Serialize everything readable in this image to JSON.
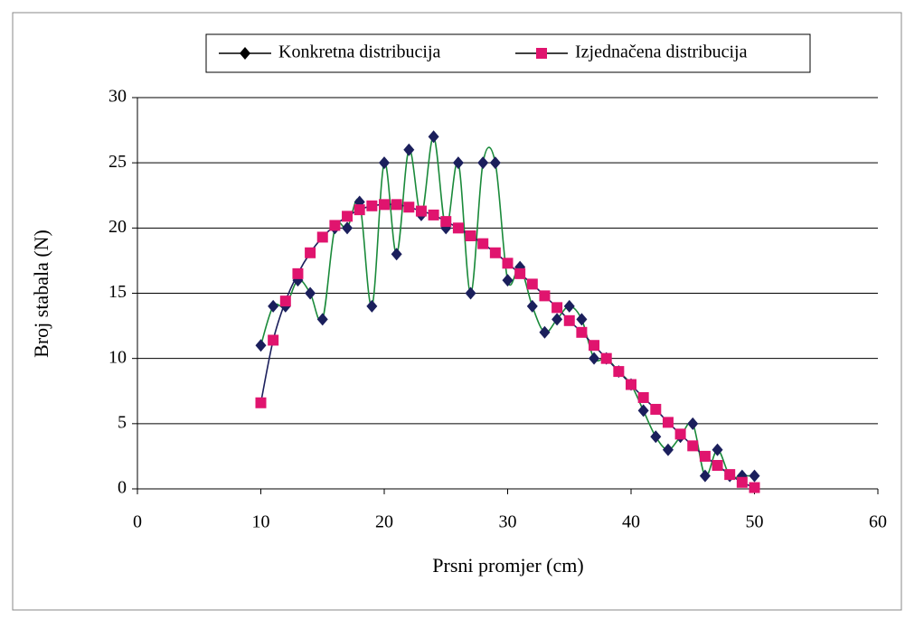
{
  "chart_data": {
    "type": "line",
    "x_label": "Prsni promjer (cm)",
    "y_label": "Broj stabala (N)",
    "x": [
      10,
      11,
      12,
      13,
      14,
      15,
      16,
      17,
      18,
      19,
      20,
      21,
      22,
      23,
      24,
      25,
      26,
      27,
      28,
      29,
      30,
      31,
      32,
      33,
      34,
      35,
      36,
      37,
      38,
      39,
      40,
      41,
      42,
      43,
      44,
      45,
      46,
      47,
      48,
      49,
      50
    ],
    "series": [
      {
        "name": "Konkretna distribucija",
        "marker": "diamond",
        "color": "#1b1f5c",
        "line_color": "#1a8a3a",
        "values": [
          11,
          14,
          14,
          16,
          15,
          13,
          20,
          20,
          22,
          14,
          25,
          18,
          26,
          21,
          27,
          20,
          25,
          15,
          25,
          25,
          16,
          17,
          14,
          12,
          13,
          14,
          13,
          10,
          10,
          9,
          8,
          6,
          4,
          3,
          4,
          5,
          1,
          3,
          1,
          1,
          1
        ]
      },
      {
        "name": "Izjednačena distribucija",
        "marker": "square",
        "color": "#e0146e",
        "line_color": "#1b1f5c",
        "values": [
          6.6,
          11.4,
          14.4,
          16.5,
          18.1,
          19.3,
          20.2,
          20.9,
          21.4,
          21.7,
          21.8,
          21.8,
          21.6,
          21.3,
          21.0,
          20.5,
          20.0,
          19.4,
          18.8,
          18.1,
          17.3,
          16.5,
          15.7,
          14.8,
          13.9,
          12.9,
          12.0,
          11.0,
          10.0,
          9.0,
          8.0,
          7.0,
          6.1,
          5.1,
          4.2,
          3.3,
          2.5,
          1.8,
          1.1,
          0.5,
          0.1
        ]
      }
    ],
    "xlim": [
      0,
      60
    ],
    "xticks": [
      0,
      10,
      20,
      30,
      40,
      50,
      60
    ],
    "ylim": [
      0,
      30
    ],
    "yticks": [
      0,
      5,
      10,
      15,
      20,
      25,
      30
    ],
    "grid": true,
    "legend": "top"
  }
}
